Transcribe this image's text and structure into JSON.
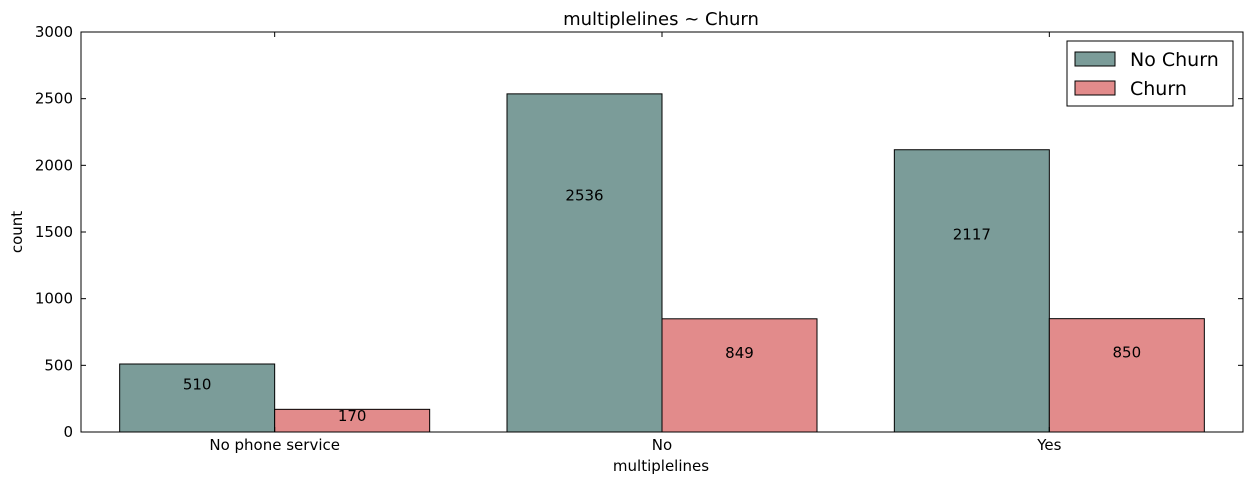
{
  "chart_data": {
    "type": "bar",
    "title": "multiplelines ~ Churn",
    "xlabel": "multiplelines",
    "ylabel": "count",
    "categories": [
      "No phone service",
      "No",
      "Yes"
    ],
    "series": [
      {
        "name": "No Churn",
        "values": [
          510,
          2536,
          2117
        ],
        "color": "#7b9c99"
      },
      {
        "name": "Churn",
        "values": [
          170,
          849,
          850
        ],
        "color": "#e28b8b"
      }
    ],
    "ylim": [
      0,
      3000
    ],
    "yticks": [
      0,
      500,
      1000,
      1500,
      2000,
      2500,
      3000
    ],
    "legend_position": "top-right",
    "grid": false
  }
}
